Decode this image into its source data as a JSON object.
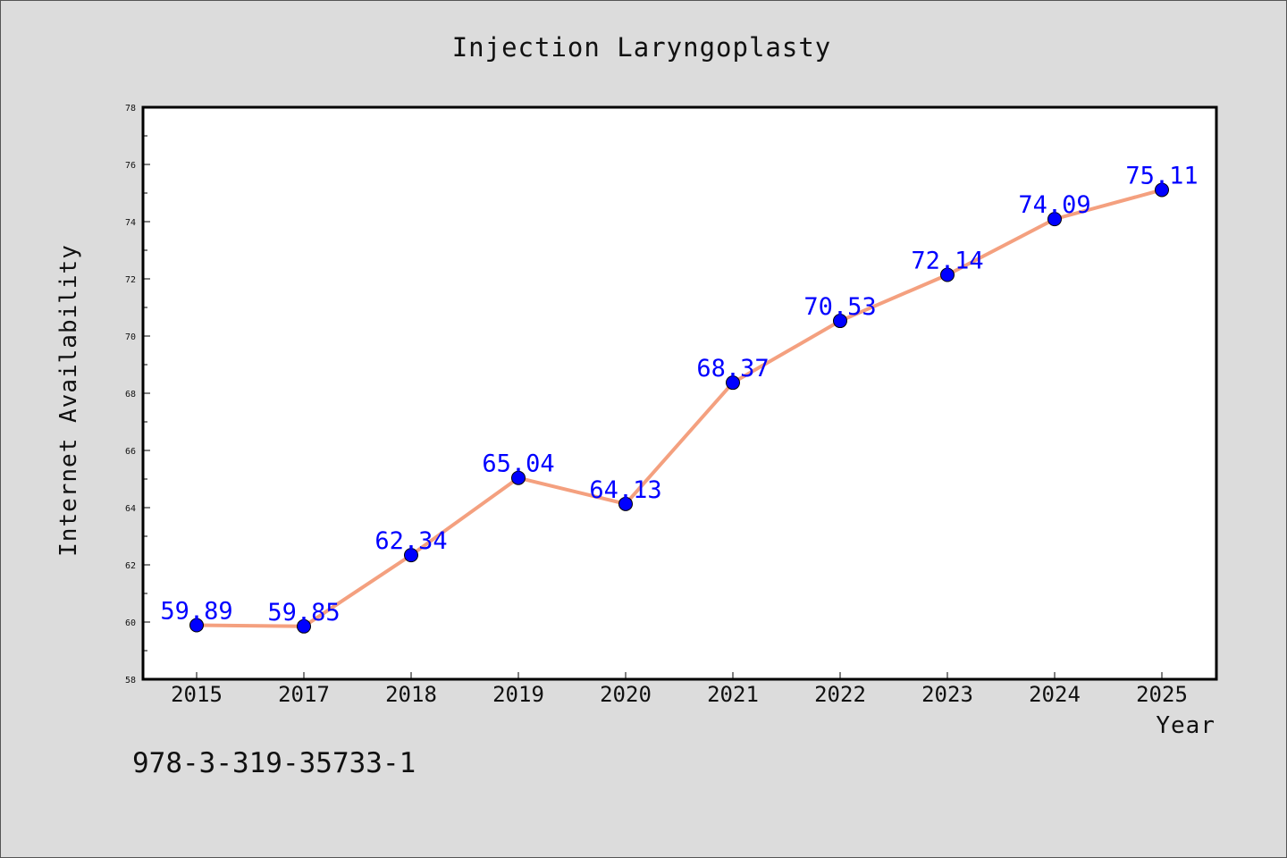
{
  "chart_data": {
    "type": "line",
    "title": "Injection Laryngoplasty",
    "xlabel": "Year",
    "ylabel": "Internet Availability",
    "categories": [
      "2015",
      "2017",
      "2018",
      "2019",
      "2020",
      "2021",
      "2022",
      "2023",
      "2024",
      "2025"
    ],
    "series": [
      {
        "values": [
          59.89,
          59.85,
          62.34,
          65.04,
          64.13,
          68.37,
          70.53,
          72.14,
          74.09,
          75.11
        ],
        "data_labels": [
          "59.89",
          "59.85",
          "62.34",
          "65.04",
          "64.13",
          "68.37",
          "70.53",
          "72.14",
          "74.09",
          "75.11"
        ],
        "line_color": "#f4a07f",
        "marker_color": "#0000ff"
      }
    ],
    "ylim": [
      58,
      78
    ],
    "yticks": [
      "58",
      "60",
      "62",
      "64",
      "66",
      "68",
      "70",
      "72",
      "74",
      "76",
      "78"
    ],
    "grid": false,
    "legend": "none"
  },
  "footnote": "978-3-319-35733-1",
  "colors": {
    "background": "#dcdcdc",
    "plot_background": "#ffffff",
    "line": "#f4a07f",
    "marker": "#0000ff",
    "data_label": "#0000ff"
  }
}
